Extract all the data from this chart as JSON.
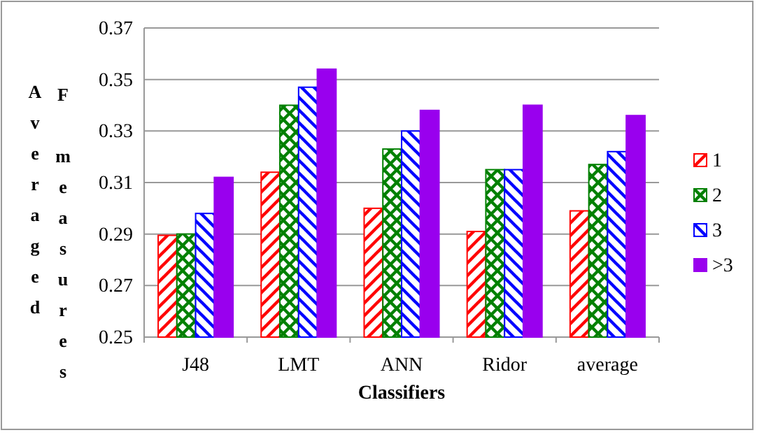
{
  "chart_data": {
    "type": "bar",
    "xlabel": "Classifiers",
    "ylabel": "Averaged F measures",
    "categories": [
      "J48",
      "LMT",
      "ANN",
      "Ridor",
      "average"
    ],
    "series": [
      {
        "name": "1",
        "color": "#ff0000",
        "values": [
          0.2895,
          0.314,
          0.3,
          0.291,
          0.299
        ]
      },
      {
        "name": "2",
        "color": "#008000",
        "values": [
          0.29,
          0.34,
          0.323,
          0.315,
          0.317
        ]
      },
      {
        "name": "3",
        "color": "#0000ff",
        "values": [
          0.298,
          0.347,
          0.33,
          0.315,
          0.322
        ]
      },
      {
        "name": ">3",
        "color": "#9900ee",
        "values": [
          0.312,
          0.354,
          0.338,
          0.34,
          0.336
        ]
      }
    ],
    "ylim": [
      0.25,
      0.37
    ],
    "yticks": [
      0.25,
      0.27,
      0.29,
      0.31,
      0.33,
      0.35,
      0.37
    ],
    "grid": "y",
    "legend": "right"
  }
}
